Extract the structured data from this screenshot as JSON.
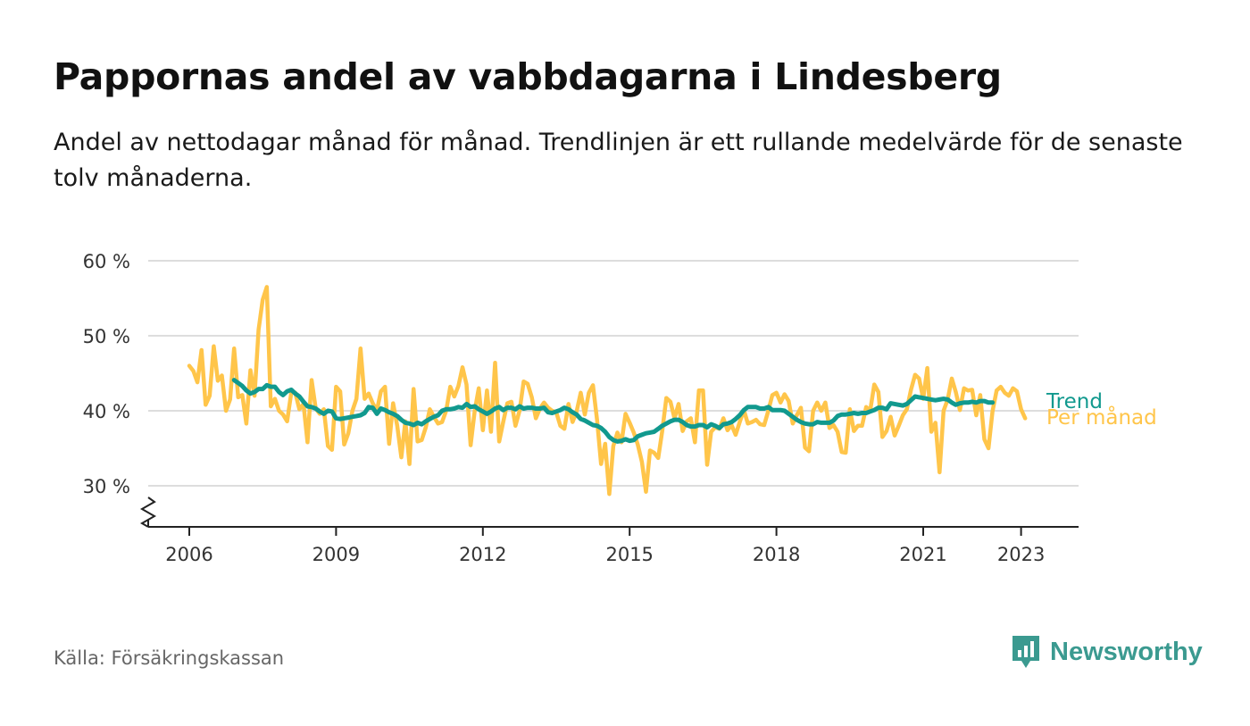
{
  "header": {
    "title": "Pappornas andel av vabbdagarna i Lindesberg",
    "subtitle": "Andel av nettodagar månad för månad. Trendlinjen är ett rullande medelvärde för de senaste tolv månaderna."
  },
  "footer": {
    "source": "Källa: Försäkringskassan",
    "brand": "Newsworthy"
  },
  "icons": {
    "brand_logo": "chart-bubble-icon",
    "axis_break": "zigzag-break-icon"
  },
  "colors": {
    "monthly": "#FFC54A",
    "trend": "#11998E",
    "grid": "#DDDDDD",
    "axis": "#222222",
    "brand": "#3B9A90"
  },
  "chart_data": {
    "type": "line",
    "title": "Pappornas andel av vabbdagarna i Lindesberg",
    "xlabel": "",
    "ylabel": "",
    "x_ticks": [
      "2006",
      "2009",
      "2012",
      "2015",
      "2018",
      "2021",
      "2023"
    ],
    "y_ticks": [
      "30 %",
      "40 %",
      "50 %",
      "60 %"
    ],
    "y_tick_values": [
      30,
      40,
      50,
      60
    ],
    "ylim": [
      25,
      60
    ],
    "x_start": "2006-01",
    "x_end": "2023-04",
    "grid": true,
    "y_axis_break": true,
    "legend": "direct labels at right end of lines",
    "series": [
      {
        "name": "Per månad",
        "start": "2006-01",
        "values": [
          46,
          45.3,
          43.8,
          48.1,
          40.8,
          42,
          48.6,
          44,
          44.7,
          40,
          41.5,
          48.3,
          41.8,
          42.1,
          38.3,
          45.4,
          42,
          50.8,
          54.8,
          56.5,
          40.6,
          41.6,
          40,
          39.5,
          38.6,
          42.4,
          42.4,
          40.2,
          40.9,
          35.8,
          44.1,
          40.3,
          39.6,
          40.2,
          35.3,
          34.8,
          43.2,
          42.6,
          35.5,
          37,
          40,
          41.6,
          48.3,
          41.6,
          42.3,
          41,
          40,
          42.6,
          43.2,
          35.6,
          41,
          38,
          33.8,
          38.6,
          32.9,
          42.9,
          35.9,
          36.1,
          37.8,
          40.2,
          39.2,
          38.3,
          38.5,
          40,
          43.2,
          41.9,
          43.3,
          45.8,
          43.5,
          35.4,
          40,
          43,
          37.4,
          42.7,
          37.2,
          46.4,
          35.9,
          38.5,
          41,
          41.2,
          38,
          40,
          43.9,
          43.6,
          41.8,
          39,
          40.3,
          41.1,
          40.4,
          40,
          39.8,
          38,
          37.6,
          40.9,
          38.5,
          39.9,
          42.4,
          39.5,
          42.4,
          43.4,
          38.8,
          32.9,
          35.6,
          28.9,
          35.3,
          37.1,
          35.8,
          39.6,
          38.4,
          37.1,
          35.5,
          33.2,
          29.2,
          34.7,
          34.4,
          33.7,
          37.3,
          41.7,
          41.2,
          39,
          40.9,
          37.3,
          38.6,
          39,
          35.8,
          42.7,
          42.7,
          32.8,
          37.2,
          37.8,
          37.6,
          39,
          37.4,
          38.1,
          36.8,
          38.5,
          40.1,
          38.3,
          38.5,
          38.8,
          38.2,
          38.1,
          40,
          42.1,
          42.4,
          41.1,
          42.2,
          41.3,
          38.3,
          39.4,
          40.4,
          35.1,
          34.6,
          40,
          41.1,
          40,
          41.1,
          37.7,
          38.1,
          37.2,
          34.5,
          34.4,
          40.2,
          37.3,
          38,
          38,
          40.5,
          40,
          43.5,
          42.5,
          36.5,
          37.3,
          39.2,
          36.7,
          38,
          39.4,
          40.2,
          42.8,
          44.8,
          44.3,
          41.6,
          45.7,
          37.2,
          38.4,
          31.8,
          40,
          41.5,
          44.3,
          42.5,
          40.1,
          43,
          42.7,
          42.8,
          39.4,
          42.1,
          36.2,
          35,
          39.9,
          42.7,
          43.2,
          42.4,
          42,
          43,
          42.6,
          40.2,
          39
        ]
      },
      {
        "name": "Trend",
        "start": "2006-12",
        "values": [
          44.1,
          43.7,
          43.3,
          42.7,
          42.3,
          42.5,
          42.9,
          42.9,
          43.4,
          43.2,
          43.2,
          42.5,
          42.1,
          42.6,
          42.8,
          42.3,
          41.9,
          41.2,
          40.6,
          40.5,
          40.3,
          39.9,
          39.6,
          40,
          39.9,
          39,
          38.9,
          39,
          39.1,
          39.2,
          39.3,
          39.4,
          39.7,
          40.5,
          40.4,
          39.6,
          40.3,
          40.1,
          39.8,
          39.6,
          39.3,
          38.8,
          38.4,
          38.3,
          38.1,
          38.4,
          38.2,
          38.6,
          38.9,
          39.2,
          39.4,
          40,
          40.2,
          40.2,
          40.3,
          40.5,
          40.4,
          40.9,
          40.5,
          40.6,
          40.2,
          39.9,
          39.6,
          39.9,
          40.3,
          40.5,
          40.1,
          40.4,
          40.4,
          40.2,
          40.6,
          40.3,
          40.4,
          40.4,
          40.3,
          40.3,
          40.4,
          39.8,
          39.7,
          39.9,
          40.1,
          40.4,
          40.2,
          39.8,
          39.5,
          38.9,
          38.7,
          38.4,
          38.1,
          38,
          37.7,
          37.2,
          36.5,
          36.1,
          35.9,
          36,
          36.2,
          36,
          36.1,
          36.6,
          36.8,
          37,
          37.1,
          37.2,
          37.6,
          38,
          38.3,
          38.6,
          38.8,
          38.8,
          38.5,
          38.1,
          37.9,
          37.9,
          38.1,
          38.1,
          37.8,
          38.2,
          38,
          37.7,
          38.2,
          38.3,
          38.5,
          38.9,
          39.4,
          40.1,
          40.5,
          40.5,
          40.5,
          40.3,
          40.3,
          40.5,
          40.1,
          40.1,
          40.1,
          40,
          39.6,
          39.2,
          38.8,
          38.5,
          38.3,
          38.2,
          38.2,
          38.5,
          38.4,
          38.4,
          38.4,
          38.7,
          39.3,
          39.5,
          39.5,
          39.6,
          39.7,
          39.6,
          39.7,
          39.7,
          39.9,
          40.1,
          40.4,
          40.4,
          40.2,
          41,
          40.9,
          40.8,
          40.7,
          40.9,
          41.4,
          41.9,
          41.8,
          41.7,
          41.6,
          41.5,
          41.4,
          41.5,
          41.6,
          41.5,
          41.1,
          40.8,
          41,
          41.1,
          41.1,
          41.2,
          41.1,
          41.3,
          41.3,
          41.1,
          41.1
        ]
      }
    ]
  }
}
